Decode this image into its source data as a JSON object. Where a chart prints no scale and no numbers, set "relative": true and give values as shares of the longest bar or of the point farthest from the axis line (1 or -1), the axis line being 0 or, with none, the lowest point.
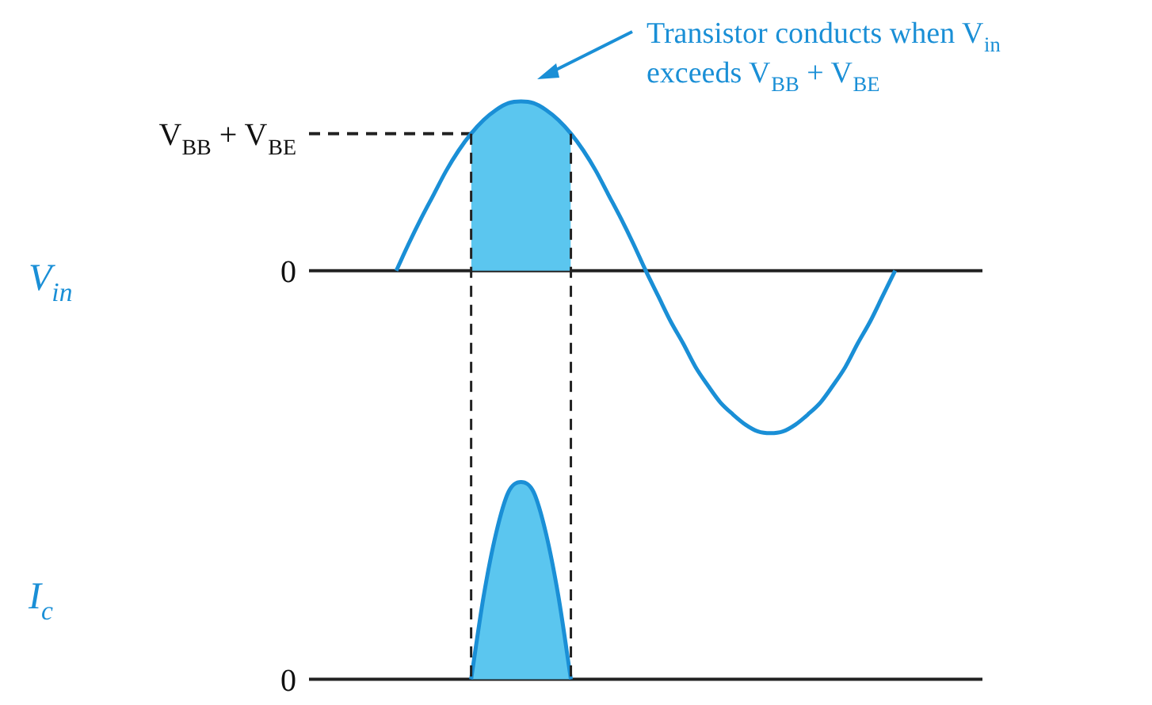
{
  "chart_data": [
    {
      "type": "line",
      "relative": true,
      "ylabel": "V$_{in}$",
      "categories": [
        null,
        null,
        null,
        null,
        null,
        null,
        null,
        null,
        null,
        null,
        null,
        null,
        null,
        null,
        null,
        null,
        null,
        null,
        null,
        null,
        null,
        null,
        null,
        null,
        null,
        null,
        null,
        null,
        null,
        null,
        null,
        null,
        null,
        null,
        null,
        null,
        null,
        null,
        null,
        null,
        null,
        null,
        null,
        null,
        null,
        null,
        null,
        null,
        null,
        null,
        null,
        null,
        null,
        null,
        null
      ],
      "series": [
        {
          "color": "#1a8fd6",
          "values": [
            null,
            null,
            null,
            null,
            null,
            null,
            null,
            0,
            0.16,
            0.31,
            0.45,
            0.59,
            0.71,
            0.81,
            0.89,
            0.95,
            0.99,
            1,
            0.99,
            0.95,
            0.89,
            0.81,
            0.71,
            0.59,
            0.45,
            0.31,
            0.16,
            0,
            -0.15,
            -0.3,
            -0.43,
            -0.57,
            -0.68,
            -0.78,
            -0.85,
            -0.91,
            -0.95,
            -0.96,
            -0.95,
            -0.91,
            -0.85,
            -0.78,
            -0.68,
            -0.57,
            -0.43,
            -0.3,
            -0.15,
            0,
            null,
            null,
            null,
            null,
            null,
            null,
            null
          ]
        },
        {
          "type": "area",
          "color": "#5bc6ef",
          "values": [
            null,
            null,
            null,
            null,
            null,
            null,
            null,
            null,
            null,
            null,
            null,
            null,
            null,
            0.81,
            0.89,
            0.95,
            0.99,
            1,
            0.99,
            0.95,
            0.89,
            0.81,
            null,
            null,
            null,
            null,
            null,
            null,
            null,
            null,
            null,
            null,
            null,
            null,
            null,
            null,
            null,
            null,
            null,
            null,
            null,
            null,
            null,
            null,
            null,
            null,
            null,
            null,
            null,
            null,
            null,
            null,
            null,
            null,
            null
          ]
        }
      ],
      "ref_lines": [
        {
          "axis": "y",
          "value": 0,
          "label": "0",
          "color": "#222222",
          "line_style": "solid"
        },
        {
          "axis": "y",
          "value": 0.81,
          "label": "V$_{BB}$ + V$_{BE}$",
          "color": "#222222",
          "line_style": "dashed"
        }
      ],
      "annotations": [
        "Transistor conducts when V$_{in}$ exceeds V$_{BB}$ + V$_{BE}$"
      ]
    },
    {
      "type": "area",
      "relative": true,
      "ylabel": "I$_{c}$",
      "categories": [
        null,
        null,
        null,
        null,
        null,
        null,
        null,
        null,
        null,
        null,
        null,
        null,
        null,
        null,
        null,
        null,
        null,
        null,
        null,
        null,
        null,
        null,
        null,
        null,
        null,
        null,
        null,
        null,
        null,
        null,
        null,
        null,
        null,
        null,
        null,
        null,
        null,
        null,
        null,
        null,
        null,
        null,
        null,
        null,
        null,
        null,
        null,
        null,
        null,
        null,
        null,
        null,
        null,
        null,
        null
      ],
      "series": [
        {
          "color": "#5bc6ef",
          "values": [
            null,
            null,
            null,
            null,
            null,
            null,
            null,
            null,
            null,
            null,
            null,
            null,
            null,
            0,
            0.42,
            0.74,
            0.95,
            1,
            0.95,
            0.74,
            0.42,
            0,
            null,
            null,
            null,
            null,
            null,
            null,
            null,
            null,
            null,
            null,
            null,
            null,
            null,
            null,
            null,
            null,
            null,
            null,
            null,
            null,
            null,
            null,
            null,
            null,
            null,
            null,
            null,
            null,
            null,
            null,
            null,
            null,
            null
          ]
        }
      ],
      "ref_lines": [
        {
          "axis": "y",
          "value": 0,
          "label": "0",
          "color": "#222222",
          "line_style": "solid"
        }
      ]
    }
  ]
}
